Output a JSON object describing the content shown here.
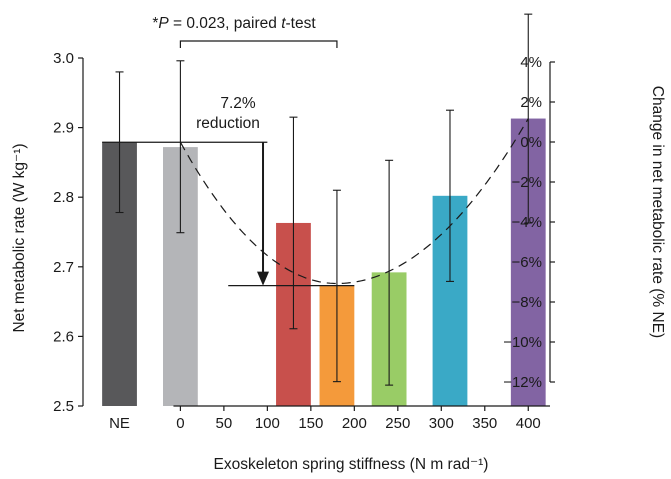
{
  "chart_data": {
    "type": "bar",
    "xlabel": "Exoskeleton spring stiffness (N m rad⁻¹)",
    "ylabel": "Net metabolic rate (W kg⁻¹)",
    "ylabel_right": "Change in net metabolic rate (% NE)",
    "ylim": [
      2.5,
      3.0
    ],
    "yticks": [
      2.5,
      2.6,
      2.7,
      2.8,
      2.9,
      3.0
    ],
    "ytick_labels": [
      "2.5",
      "2.6",
      "2.7",
      "2.8",
      "2.9",
      "3.0"
    ],
    "ylim_right_percent": [
      -13.2,
      4.2
    ],
    "yticks_right": [
      -12,
      -10,
      -8,
      -6,
      -4,
      -2,
      0,
      2,
      4
    ],
    "ytick_labels_right": [
      "−12%",
      "−10%",
      "−8%",
      "−6%",
      "−4%",
      "−2%",
      "0%",
      "2%",
      "4%"
    ],
    "xlim": [
      -112,
      425
    ],
    "xticks": [
      0,
      50,
      100,
      150,
      200,
      250,
      300,
      350,
      400
    ],
    "xtick_labels": [
      "0",
      "50",
      "100",
      "150",
      "200",
      "250",
      "300",
      "350",
      "400"
    ],
    "ne_label": "NE",
    "ne_x": -70,
    "bar_width": 40,
    "bars": [
      {
        "label": "NE",
        "x": -70,
        "value": 2.879,
        "err_low": 2.778,
        "err_high": 2.98,
        "color": "#58585a"
      },
      {
        "label": "0",
        "x": 0,
        "value": 2.872,
        "err_low": 2.749,
        "err_high": 2.996,
        "color": "#b4b5b8"
      },
      {
        "label": "130",
        "x": 130,
        "value": 2.763,
        "err_low": 2.611,
        "err_high": 2.915,
        "color": "#c8504c"
      },
      {
        "label": "180",
        "x": 180,
        "value": 2.673,
        "err_low": 2.535,
        "err_high": 2.81,
        "color": "#f49a3b"
      },
      {
        "label": "240",
        "x": 240,
        "value": 2.692,
        "err_low": 2.53,
        "err_high": 2.853,
        "color": "#99cc66"
      },
      {
        "label": "310",
        "x": 310,
        "value": 2.802,
        "err_low": 2.679,
        "err_high": 2.925,
        "color": "#3aa9c6"
      },
      {
        "label": "400",
        "x": 400,
        "value": 2.913,
        "err_low": 2.763,
        "err_high": 3.063,
        "color": "#8264a3"
      }
    ],
    "fit_curve": {
      "style": "dashed",
      "vertex_x": 180,
      "vertex_y": 2.676,
      "passes_through": [
        [
          0,
          2.879
        ],
        [
          400,
          2.913
        ]
      ]
    },
    "reduction_annotation": {
      "line1": "7.2%",
      "line2": "reduction",
      "from_value": 2.879,
      "to_value": 2.673
    },
    "significance": {
      "prefix": "*",
      "italic_p": "P",
      "p_text": " = 0.023, paired ",
      "italic_t": "t",
      "test_text": "-test",
      "from_x": 0,
      "to_x": 180
    }
  }
}
